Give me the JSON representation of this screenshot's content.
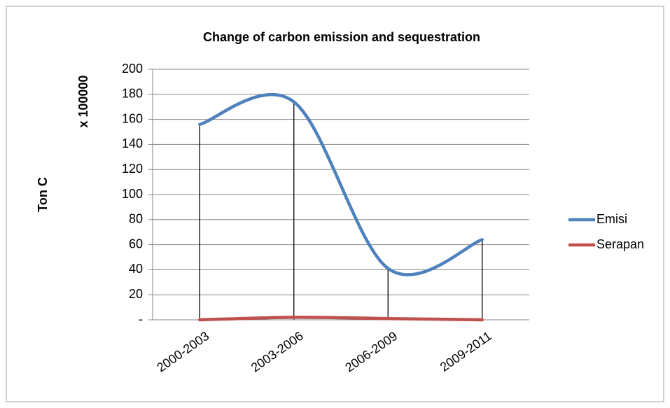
{
  "chart_data": {
    "type": "line",
    "title": "Change of carbon emission and sequestration",
    "ylabel": "Ton C",
    "ylabel_unit": "x 100000",
    "categories": [
      "2000-2003",
      "2003-2006",
      "2006-2009",
      "2009-2011"
    ],
    "series": [
      {
        "name": "Emisi",
        "color": "#4f81bd",
        "values": [
          156,
          174,
          41,
          64
        ]
      },
      {
        "name": "Serapan",
        "color": "#c0504d",
        "values": [
          0,
          2,
          1,
          0
        ]
      }
    ],
    "ylim": [
      0,
      200
    ],
    "yticks": [
      {
        "value": 0,
        "label": "-"
      },
      20,
      40,
      60,
      80,
      100,
      120,
      140,
      160,
      180,
      200
    ],
    "grid": true,
    "smooth": true,
    "drop_lines": true,
    "legend": "right"
  }
}
